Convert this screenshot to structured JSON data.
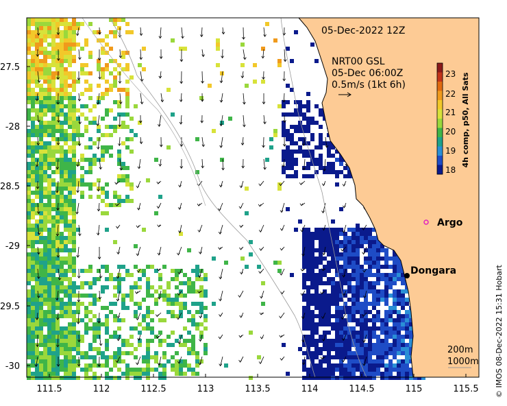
{
  "header": {
    "date_label": "05-Dec-2022 12Z",
    "current_source": "NRT00 GSL",
    "current_time": "05-Dec 06:00Z",
    "scale_label": "0.5m/s (1kt 6h)"
  },
  "colorbar": {
    "label": "4h comp, p50, All Sats",
    "ticks": [
      "23",
      "22",
      "21",
      "20",
      "19",
      "18"
    ],
    "colors": [
      "#8b1a1a",
      "#c2341a",
      "#e06a10",
      "#f09a1c",
      "#f2c82a",
      "#d8e23a",
      "#9ad83c",
      "#3fb548",
      "#1fa28a",
      "#2a8fd6",
      "#1e4cc6",
      "#0a1a8c"
    ]
  },
  "axes": {
    "x_ticks": [
      "111.5",
      "112",
      "112.5",
      "113",
      "113.5",
      "114",
      "114.5",
      "115",
      "115.5"
    ],
    "y_ticks": [
      "-27.5",
      "-28",
      "-28.5",
      "-29",
      "-29.5",
      "-30"
    ]
  },
  "places": {
    "argo": "Argo",
    "dongara": "Dongara"
  },
  "isobaths": {
    "shallow": "200m",
    "deep": "1000m"
  },
  "credit": "© IMOS 08-Dec-2022 15:31 Hobart",
  "colors": {
    "land": "#fdcb95",
    "argo": "#e020c0",
    "coast": "#000000",
    "isobath": "#999999"
  }
}
